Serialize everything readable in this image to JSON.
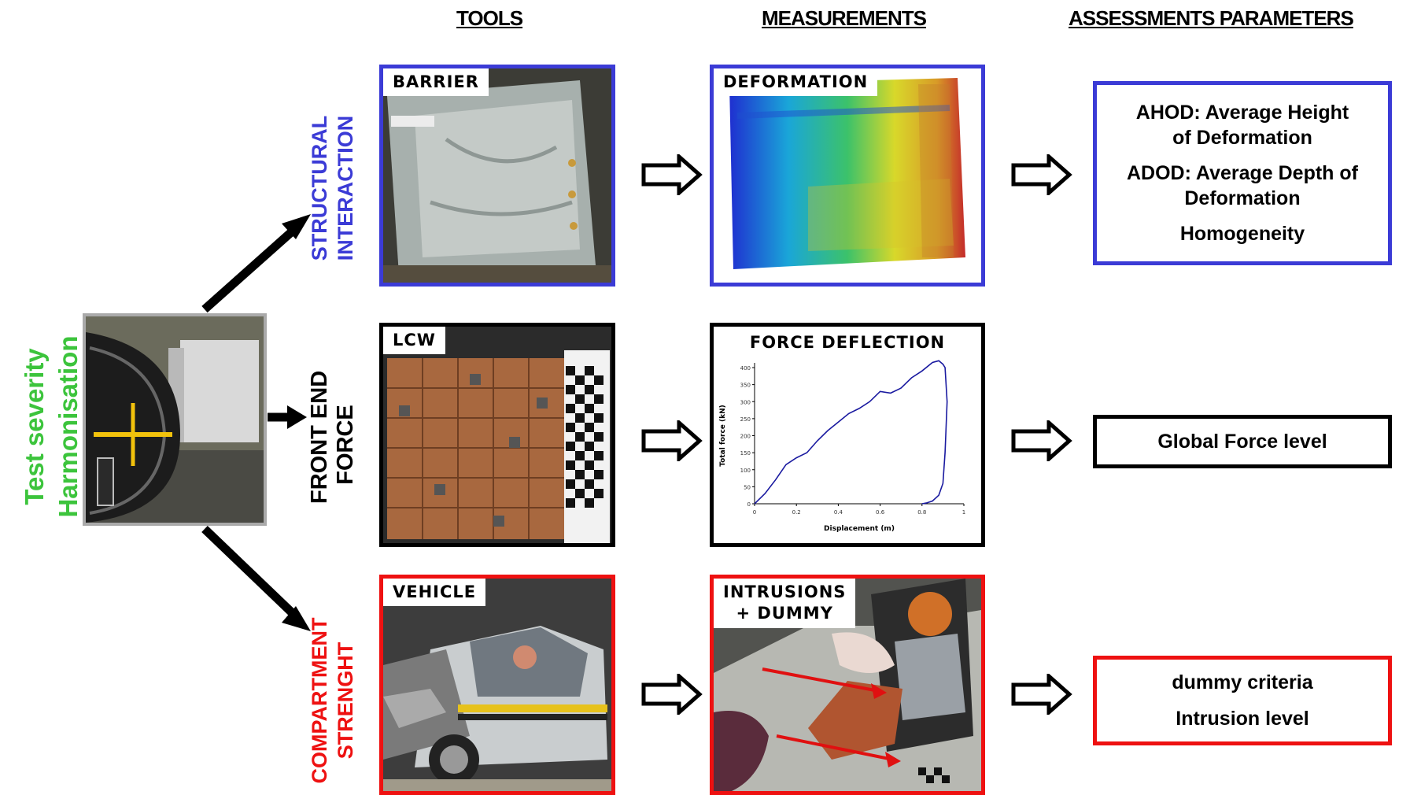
{
  "headers": {
    "tools": "TOOLS",
    "measurements": "MEASUREMENTS",
    "assessments": "ASSESSMENTS PARAMETERS"
  },
  "left_title": {
    "line1": "Test severity",
    "line2": "Harmonisation",
    "color": "#3cc43c"
  },
  "rows": [
    {
      "label_line1": "STRUCTURAL",
      "label_line2": "INTERACTION",
      "color": "#3b3bd6",
      "tool_tag": "BARRIER",
      "measure_tag": "DEFORMATION",
      "assessments": [
        "AHOD: Average Height of Deformation",
        "ADOD: Average Depth of Deformation",
        "Homogeneity"
      ]
    },
    {
      "label_line1": "FRONT END",
      "label_line2": "FORCE",
      "color": "#000000",
      "tool_tag": "LCW",
      "measure_tag": "FORCE DEFLECTION",
      "assessments": [
        "Global Force level"
      ]
    },
    {
      "label_line1": "COMPARTMENT",
      "label_line2": "STRENGHT",
      "color": "#ee1111",
      "tool_tag": "VEHICLE",
      "measure_tag_line1": "INTRUSIONS",
      "measure_tag_line2": "+ DUMMY",
      "assessments": [
        "dummy criteria",
        "Intrusion level"
      ]
    }
  ],
  "chart_data": {
    "type": "line",
    "title": "FORCE DEFLECTION",
    "xlabel": "Displacement (m)",
    "ylabel": "Total force (kN)",
    "xlim": [
      0,
      1
    ],
    "ylim": [
      0,
      400
    ],
    "x_ticks": [
      "0",
      "0.2",
      "0.4",
      "0.6",
      "0.8",
      "1"
    ],
    "y_ticks": [
      "0",
      "50",
      "100",
      "150",
      "200",
      "250",
      "300",
      "350",
      "400"
    ],
    "series": [
      {
        "x": [
          0,
          0.05,
          0.1,
          0.15,
          0.2,
          0.25,
          0.3,
          0.35,
          0.4,
          0.45,
          0.5,
          0.55,
          0.6,
          0.65,
          0.7,
          0.75,
          0.8,
          0.85,
          0.88,
          0.9,
          0.91,
          0.92,
          0.91,
          0.9,
          0.88,
          0.85,
          0.82,
          0.8
        ],
        "y": [
          0,
          30,
          70,
          115,
          135,
          150,
          185,
          215,
          240,
          265,
          280,
          300,
          330,
          325,
          340,
          370,
          390,
          415,
          420,
          410,
          400,
          300,
          150,
          60,
          25,
          8,
          2,
          0
        ]
      }
    ],
    "line_color": "#1a1aa0"
  },
  "icons": {
    "left_photo": "crash-test-photo-icon",
    "arrow": "hollow-arrow-icon"
  }
}
